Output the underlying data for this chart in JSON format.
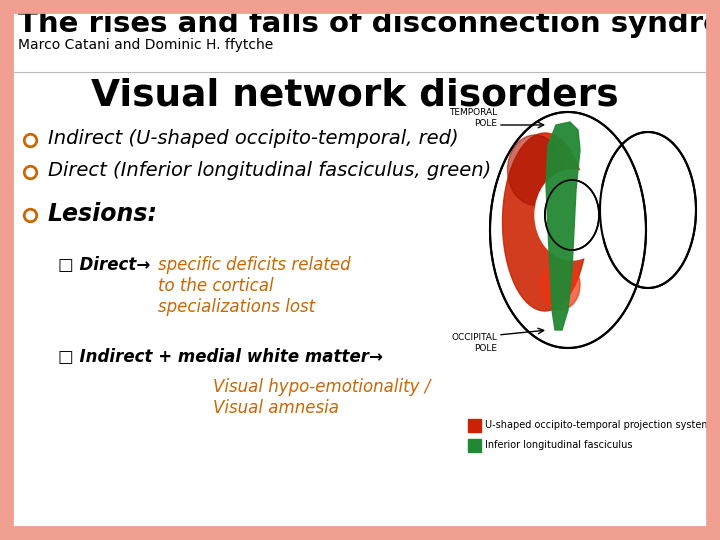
{
  "bg_color": "#ffffff",
  "border_color": "#f0a090",
  "header_title": "The rises and falls of disconnection syndromes",
  "header_author": "Marco Catani and Dominic H. ffytche",
  "section_title": "Visual network disorders",
  "bullet_color": "#cc6600",
  "bullet1": "Indirect (U-shaped occipito-temporal, red)",
  "bullet2": "Direct (Inferior longitudinal fasciculus, green)",
  "bullet3": "Lesions:",
  "sub1_label": "□ Direct→",
  "sub1_text": "specific deficits related\nto the cortical\nspecializations lost",
  "sub2_label": "□ Indirect + medial white matter→",
  "sub2_text": "Visual hypo-emotionality /\nVisual amnesia",
  "orange_color": "#cc6600",
  "legend_red": "#cc2200",
  "legend_green": "#228833",
  "legend_red_label": "U-shaped occipito-temporal projection system",
  "legend_green_label": "Inferior longitudinal fasciculus",
  "header_title_size": 21,
  "header_author_size": 10,
  "section_title_size": 27,
  "bullet_size": 14,
  "sub_label_size": 12,
  "sub_text_size": 12
}
